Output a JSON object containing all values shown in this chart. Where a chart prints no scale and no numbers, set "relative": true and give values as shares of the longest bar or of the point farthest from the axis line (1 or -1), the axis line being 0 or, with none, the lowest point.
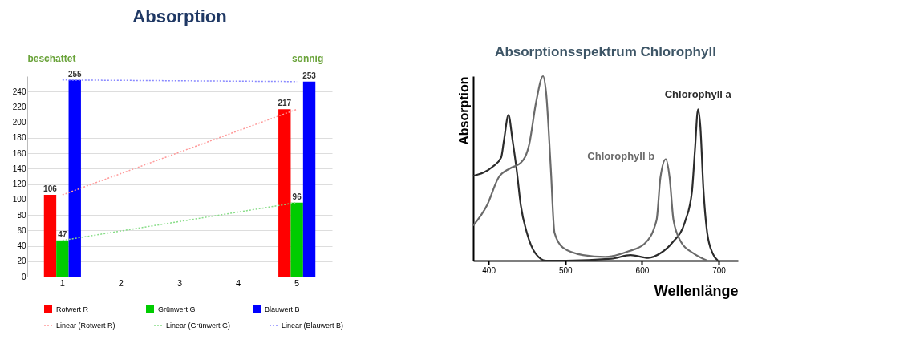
{
  "chart_data": [
    {
      "type": "bar",
      "title": "Absorption",
      "categories": [
        "1",
        "2",
        "3",
        "4",
        "5"
      ],
      "series": [
        {
          "name": "Rotwert R",
          "color": "#ff0000",
          "values": [
            106,
            null,
            null,
            null,
            217
          ],
          "value_labels": [
            "106",
            null,
            null,
            null,
            "217"
          ]
        },
        {
          "name": "Grünwert G",
          "color": "#00cc00",
          "values": [
            47,
            null,
            null,
            null,
            96
          ],
          "value_labels": [
            "47",
            null,
            null,
            null,
            "96"
          ]
        },
        {
          "name": "Blauwert B",
          "color": "#0000ff",
          "values": [
            255,
            null,
            null,
            null,
            253
          ],
          "value_labels": [
            "255",
            null,
            null,
            null,
            "253"
          ]
        },
        {
          "name": "Linear (Rotwert R)",
          "type": "line",
          "line_style": "dotted",
          "color": "#ff9999",
          "x": [
            "1",
            "5"
          ],
          "values": [
            106,
            217
          ]
        },
        {
          "name": "Linear (Grünwert G)",
          "type": "line",
          "line_style": "dotted",
          "color": "#88dd88",
          "x": [
            "1",
            "5"
          ],
          "values": [
            47,
            96
          ]
        },
        {
          "name": "Linear (Blauwert B)",
          "type": "line",
          "line_style": "dotted",
          "color": "#8888ff",
          "x": [
            "1",
            "5"
          ],
          "values": [
            255,
            253
          ]
        }
      ],
      "ylim": [
        0,
        260
      ],
      "yticks": [
        0,
        20,
        40,
        60,
        80,
        100,
        120,
        140,
        160,
        180,
        200,
        220,
        240
      ],
      "grid": "y",
      "legend": "bottom",
      "annotations": [
        "beschattet",
        "sonnig"
      ]
    },
    {
      "type": "line",
      "title": "Absorptionsspektrum Chlorophyll",
      "xlabel": "Wellenlänge",
      "ylabel": "Absorption",
      "relative": true,
      "xlim": [
        380,
        725
      ],
      "xticks": [
        400,
        500,
        600,
        700
      ],
      "grid": false,
      "legend": false,
      "series": [
        {
          "name": "Chlorophyll a",
          "color": "#2b2b2b",
          "x": [
            380,
            405.5,
            416.5,
            420,
            426,
            431,
            437,
            442,
            450,
            461,
            475,
            501,
            560,
            585,
            608,
            624,
            640,
            656,
            665,
            669,
            673,
            676,
            680,
            685,
            692,
            699
          ],
          "values": [
            0.46,
            0.51,
            0.56,
            0.65,
            0.79,
            0.66,
            0.48,
            0.3,
            0.15,
            0.04,
            0,
            0,
            0.01,
            0.03,
            0.015,
            0.04,
            0.1,
            0.21,
            0.37,
            0.6,
            0.82,
            0.73,
            0.39,
            0.15,
            0.04,
            0
          ]
        },
        {
          "name": "Chlorophyll b",
          "color": "#6a6a6a",
          "x": [
            380,
            398,
            413,
            428,
            442,
            453,
            462,
            471,
            475,
            481,
            486,
            497,
            523,
            552,
            582,
            603,
            619,
            624,
            631,
            636,
            641,
            651,
            667,
            685
          ],
          "values": [
            0.19,
            0.3,
            0.45,
            0.5,
            0.53,
            0.63,
            0.86,
            1.0,
            0.91,
            0.51,
            0.15,
            0.07,
            0.03,
            0.02,
            0.05,
            0.09,
            0.22,
            0.45,
            0.55,
            0.45,
            0.22,
            0.1,
            0.04,
            0
          ]
        }
      ]
    }
  ]
}
